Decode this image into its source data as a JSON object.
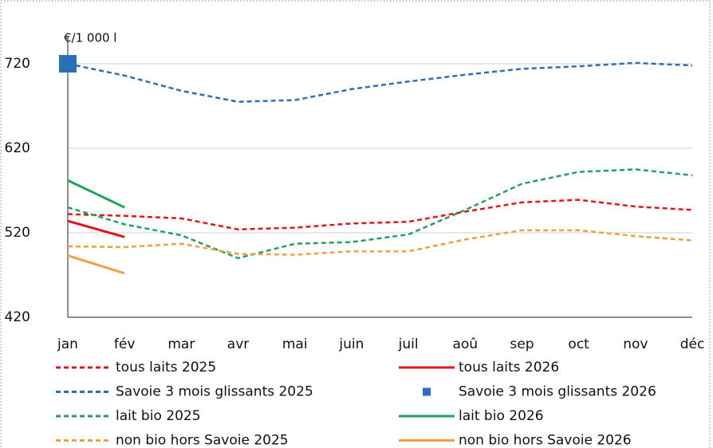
{
  "chart_data": {
    "type": "line",
    "y_label": "€/1 000 l",
    "categories": [
      "jan",
      "fév",
      "mar",
      "avr",
      "mai",
      "juin",
      "juil",
      "aoû",
      "sep",
      "oct",
      "nov",
      "déc"
    ],
    "ylim": [
      420,
      753
    ],
    "yticks": [
      420,
      520,
      620,
      720
    ],
    "grid": true,
    "series": [
      {
        "name": "tous laits 2025",
        "color": "#e3141c",
        "dash": true,
        "values": [
          542,
          540,
          537,
          524,
          526,
          531,
          533,
          545,
          556,
          559,
          551,
          547
        ]
      },
      {
        "name": "tous laits 2026",
        "color": "#e3141c",
        "dash": false,
        "values": [
          534,
          515,
          null,
          null,
          null,
          null,
          null,
          null,
          null,
          null,
          null,
          null
        ]
      },
      {
        "name": "Savoie 3 mois glissants 2025",
        "color": "#2a6fb8",
        "dash": true,
        "values": [
          720,
          706,
          688,
          675,
          677,
          690,
          699,
          707,
          714,
          717,
          721,
          718
        ]
      },
      {
        "name": "Savoie 3 mois glissants 2026",
        "color": "#2a6fb8",
        "marker": "square",
        "values": [
          720,
          null,
          null,
          null,
          null,
          null,
          null,
          null,
          null,
          null,
          null,
          null
        ]
      },
      {
        "name": "lait bio 2025",
        "color": "#23a15a",
        "dash": true,
        "values": [
          550,
          530,
          517,
          490,
          507,
          509,
          518,
          547,
          578,
          592,
          595,
          588
        ]
      },
      {
        "name": "lait bio 2026",
        "color": "#23a15a",
        "dash": false,
        "values": [
          582,
          550,
          null,
          null,
          null,
          null,
          null,
          null,
          null,
          null,
          null,
          null
        ]
      },
      {
        "name": "non bio hors Savoie 2025",
        "color": "#f0a042",
        "dash": true,
        "values": [
          504,
          503,
          507,
          495,
          494,
          498,
          498,
          512,
          523,
          523,
          516,
          511
        ]
      },
      {
        "name": "non bio hors Savoie 2026",
        "color": "#f0a042",
        "dash": false,
        "values": [
          493,
          472,
          null,
          null,
          null,
          null,
          null,
          null,
          null,
          null,
          null,
          null
        ]
      }
    ]
  }
}
